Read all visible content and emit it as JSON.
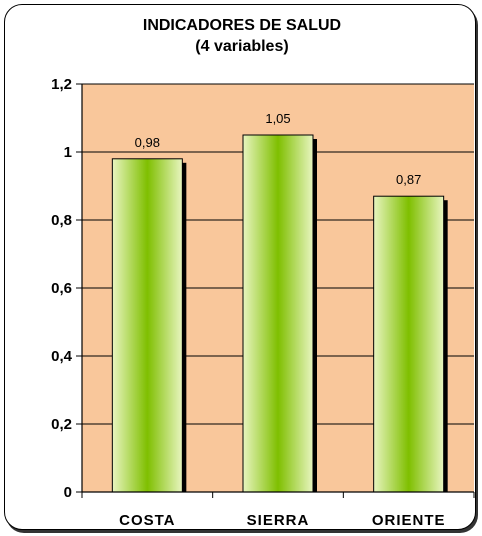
{
  "chart_data": {
    "type": "bar",
    "title": "INDICADORES DE SALUD",
    "subtitle": "(4 variables)",
    "categories": [
      "COSTA",
      "SIERRA",
      "ORIENTE"
    ],
    "values": [
      0.98,
      1.05,
      0.87
    ],
    "data_labels": [
      "0,98",
      "1,05",
      "0,87"
    ],
    "ylim": [
      0,
      1.2
    ],
    "yticks": [
      0,
      0.2,
      0.4,
      0.6,
      0.8,
      1,
      1.2
    ],
    "ytick_labels": [
      "0",
      "0,2",
      "0,4",
      "0,6",
      "0,8",
      "1",
      "1,2"
    ],
    "grid": true,
    "legend": "none",
    "plot_background": "#f9c79b",
    "bar_color_center": "#7fbf00",
    "bar_color_edge": "#e8f5c0",
    "xlabel": "",
    "ylabel": ""
  }
}
